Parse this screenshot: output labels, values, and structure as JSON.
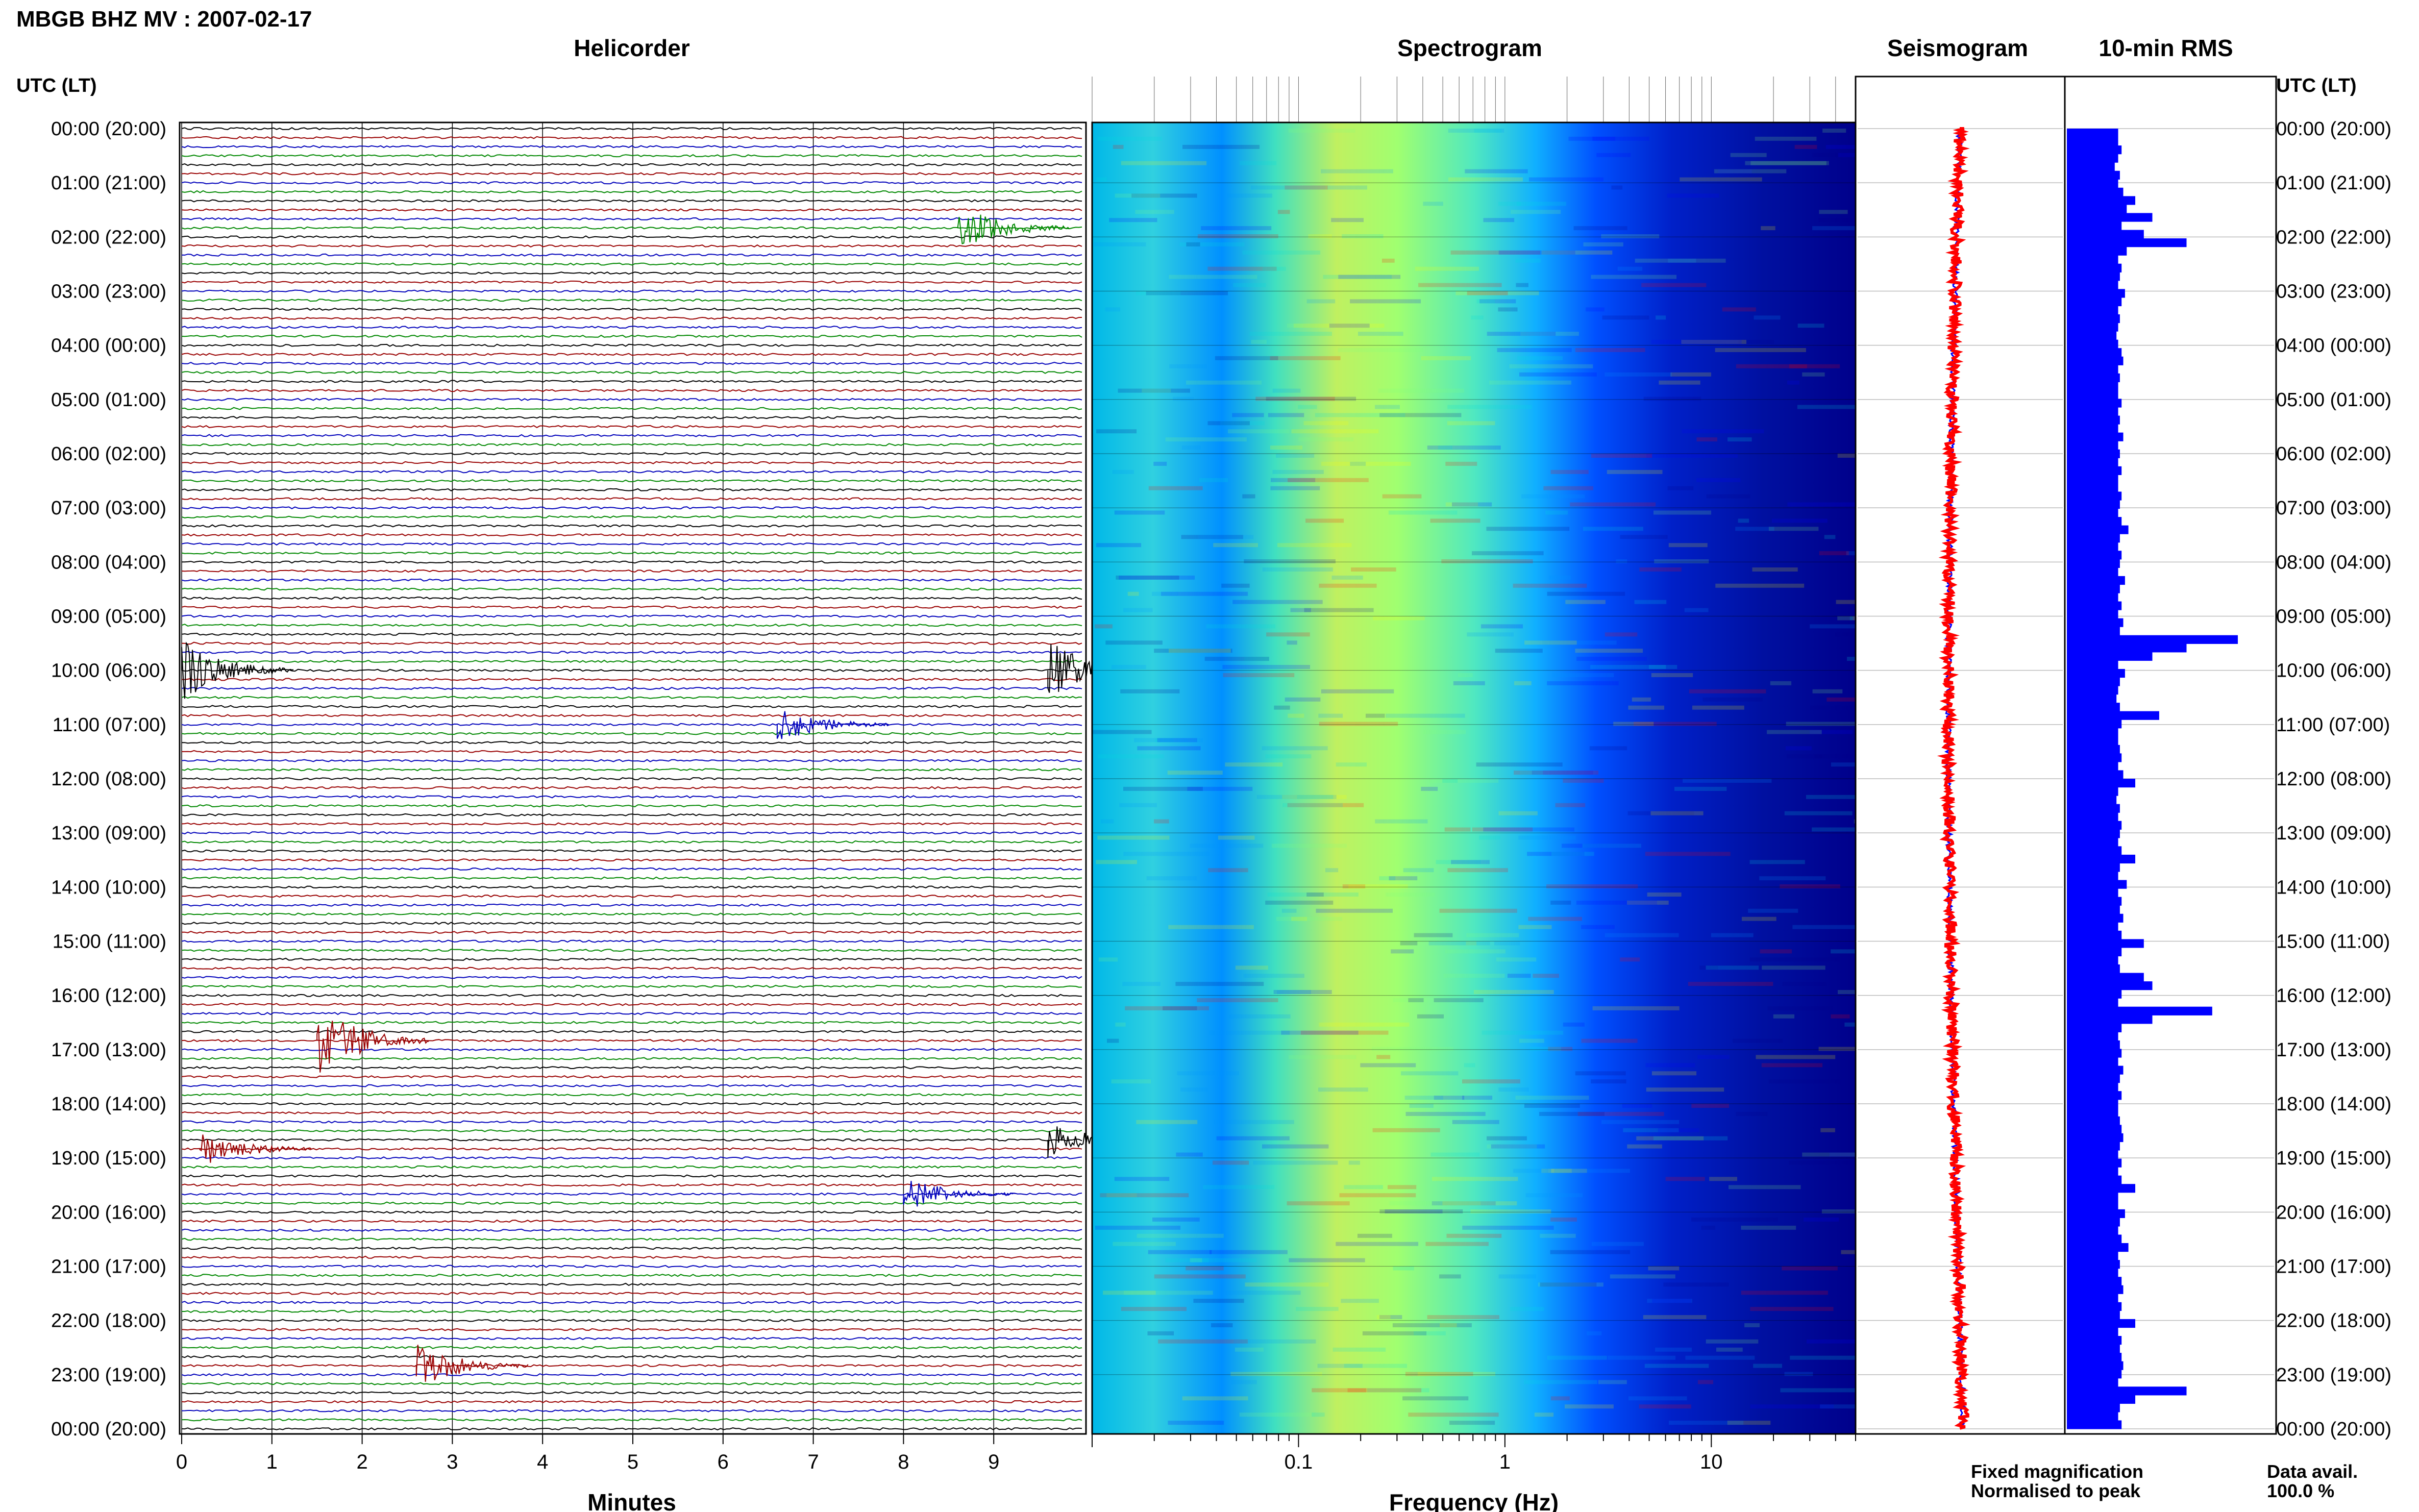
{
  "figure": {
    "title": "MBGB BHZ MV : 2007-02-17",
    "utc_header_left": "UTC (LT)",
    "utc_header_right": "UTC (LT)",
    "panel_titles": {
      "helicorder": "Helicorder",
      "spectrogram": "Spectrogram",
      "seismogram": "Seismogram",
      "rms": "10-min RMS"
    },
    "time_labels": [
      "00:00 (20:00)",
      "01:00 (21:00)",
      "02:00 (22:00)",
      "03:00 (23:00)",
      "04:00 (00:00)",
      "05:00 (01:00)",
      "06:00 (02:00)",
      "07:00 (03:00)",
      "08:00 (04:00)",
      "09:00 (05:00)",
      "10:00 (06:00)",
      "11:00 (07:00)",
      "12:00 (08:00)",
      "13:00 (09:00)",
      "14:00 (10:00)",
      "15:00 (11:00)",
      "16:00 (12:00)",
      "17:00 (13:00)",
      "18:00 (14:00)",
      "19:00 (15:00)",
      "20:00 (16:00)",
      "21:00 (17:00)",
      "22:00 (18:00)",
      "23:00 (19:00)",
      "00:00 (20:00)"
    ],
    "legend": {
      "fixed": "Fixed magnification",
      "normalised": "Normalised to peak",
      "fixed_color": "#0000ff",
      "normalised_color": "#ff0000"
    },
    "data_avail_label": "Data avail.",
    "data_avail_value": "100.0 %"
  },
  "chart_data": [
    {
      "type": "line",
      "panel": "Helicorder",
      "xlabel": "Minutes",
      "xticks": [
        "0",
        "1",
        "2",
        "3",
        "4",
        "5",
        "6",
        "7",
        "8",
        "9"
      ],
      "xlim": [
        0,
        10
      ],
      "trace_colors": [
        "#000000",
        "#990000",
        "#0000bb",
        "#008800"
      ],
      "traces_per_hour": 6,
      "events": [
        {
          "hour": 10.0,
          "minute": 0.0,
          "amplitude": 5
        },
        {
          "hour": 10.0,
          "minute": 9.6,
          "amplitude": 5
        },
        {
          "hour": 16.83,
          "minute": 1.5,
          "amplitude": 6
        },
        {
          "hour": 1.83,
          "minute": 8.6,
          "amplitude": 4
        },
        {
          "hour": 11.0,
          "minute": 6.6,
          "amplitude": 3
        },
        {
          "hour": 22.83,
          "minute": 2.6,
          "amplitude": 4
        },
        {
          "hour": 19.67,
          "minute": 8.0,
          "amplitude": 3
        },
        {
          "hour": 18.83,
          "minute": 0.2,
          "amplitude": 3
        },
        {
          "hour": 18.67,
          "minute": 9.6,
          "amplitude": 3
        }
      ]
    },
    {
      "type": "heatmap",
      "panel": "Spectrogram",
      "xlabel": "Frequency (Hz)",
      "xscale": "log",
      "xticks": [
        "0.1",
        "1",
        "10"
      ],
      "xlim": [
        0.01,
        50
      ],
      "colormap": [
        "#00008b",
        "#0000ff",
        "#0096ff",
        "#00e0e0",
        "#80ff80",
        "#ffff00",
        "#ff0000"
      ]
    },
    {
      "type": "line",
      "panel": "Seismogram",
      "series": [
        {
          "name": "Fixed magnification",
          "color": "#0000ff"
        },
        {
          "name": "Normalised to peak",
          "color": "#ff0000"
        }
      ]
    },
    {
      "type": "bar",
      "panel": "10-min RMS",
      "bar_color": "#0000ff",
      "xlim": [
        0,
        12
      ],
      "values": [
        3,
        3,
        3.2,
        3,
        2.8,
        3.1,
        3,
        3.3,
        4,
        3.5,
        5,
        3.2,
        4.5,
        7,
        3.5,
        3,
        3.2,
        3.1,
        3,
        3.4,
        3.2,
        3,
        3.1,
        3,
        2.9,
        3,
        3.2,
        3.3,
        3,
        3.1,
        3,
        3,
        3.2,
        3,
        3.1,
        3,
        3.3,
        3,
        3.1,
        3,
        3.2,
        3,
        3,
        3.2,
        3.1,
        3,
        3.2,
        3.6,
        3.1,
        3,
        3.2,
        3.1,
        3,
        3.4,
        3.1,
        3,
        3.2,
        3,
        3.3,
        3.1,
        10,
        7,
        5,
        3,
        3.4,
        3.1,
        3,
        2.9,
        3.1,
        5.4,
        3.2,
        3,
        3,
        3.1,
        3.2,
        3,
        3.3,
        4,
        3,
        2.9,
        3.1,
        3,
        3.2,
        3.1,
        3,
        3.2,
        4,
        3.1,
        3,
        3.5,
        3,
        3.2,
        3.1,
        3.3,
        3,
        3.2,
        4.5,
        3.2,
        3,
        3.1,
        4.5,
        5,
        3.2,
        3,
        8.5,
        5,
        3.2,
        3,
        3.1,
        3.2,
        3,
        3.3,
        3.1,
        3,
        3.2,
        3,
        3,
        3.1,
        3.2,
        3.3,
        3.1,
        3,
        3.2,
        3,
        3.2,
        4,
        3,
        3,
        3.4,
        3.1,
        3,
        3.2,
        3.6,
        3,
        3.1,
        3,
        3.2,
        3.3,
        3,
        3.2,
        3.1,
        4,
        3,
        3.2,
        3.1,
        3.2,
        3.3,
        3.2,
        3,
        7,
        4,
        3.1,
        3,
        3.2
      ]
    }
  ]
}
